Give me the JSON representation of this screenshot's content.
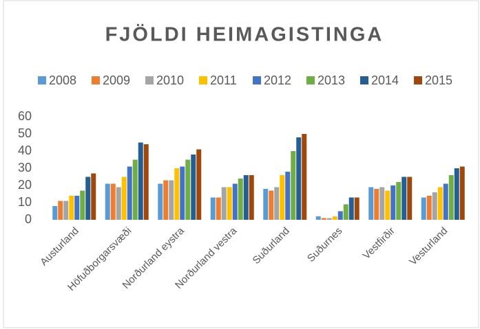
{
  "chart_data": {
    "type": "bar",
    "title": "FJÖLDI HEIMAGISTINGA",
    "categories": [
      "Austurland",
      "Höfuðborgarsvæði",
      "Norðurland eystra",
      "Norðurland vestra",
      "Suðurland",
      "Suðurnes",
      "Vestfirðir",
      "Vesturland"
    ],
    "series": [
      {
        "name": "2008",
        "color": "#5b9bd5",
        "values": [
          8,
          21,
          21,
          13,
          18,
          2,
          19,
          13
        ]
      },
      {
        "name": "2009",
        "color": "#ed7d31",
        "values": [
          11,
          21,
          23,
          13,
          17,
          1,
          18,
          14
        ]
      },
      {
        "name": "2010",
        "color": "#a5a5a5",
        "values": [
          11,
          19,
          23,
          19,
          19,
          1,
          19,
          16
        ]
      },
      {
        "name": "2011",
        "color": "#ffc000",
        "values": [
          14,
          25,
          30,
          19,
          26,
          2,
          17,
          19
        ]
      },
      {
        "name": "2012",
        "color": "#4472c4",
        "values": [
          14,
          31,
          31,
          21,
          28,
          5,
          20,
          21
        ]
      },
      {
        "name": "2013",
        "color": "#70ad47",
        "values": [
          17,
          35,
          35,
          24,
          40,
          9,
          22,
          26
        ]
      },
      {
        "name": "2014",
        "color": "#255e91",
        "values": [
          25,
          45,
          38,
          26,
          48,
          13,
          25,
          30
        ]
      },
      {
        "name": "2015",
        "color": "#9e480e",
        "values": [
          27,
          44,
          41,
          26,
          50,
          13,
          25,
          31
        ]
      }
    ],
    "ylim": [
      0,
      60
    ],
    "yticks": [
      0,
      10,
      20,
      30,
      40,
      50,
      60
    ],
    "grid": false,
    "legend": "top"
  }
}
